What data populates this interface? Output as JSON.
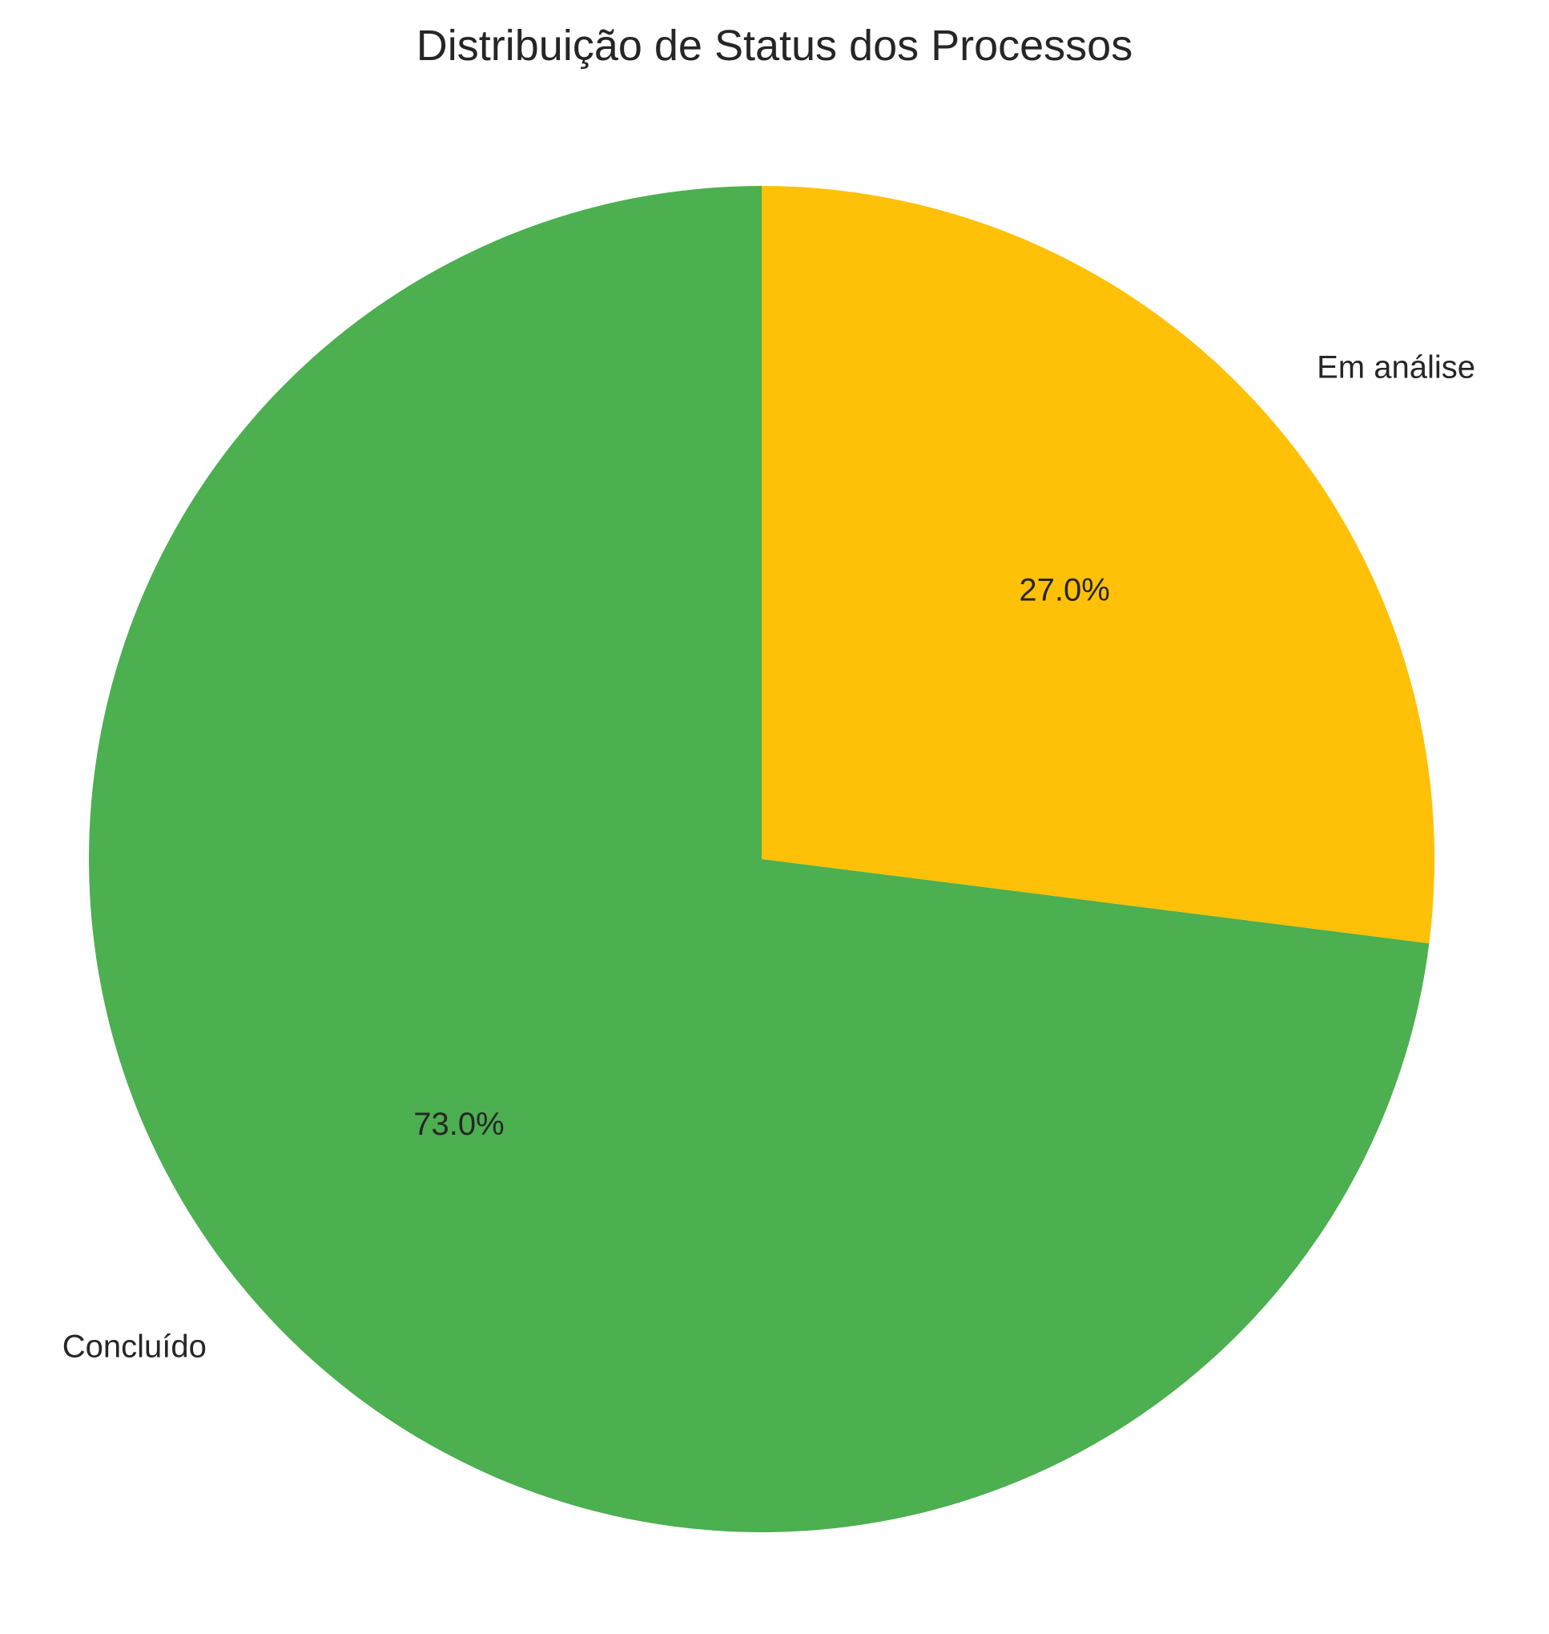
{
  "chart_data": {
    "type": "pie",
    "title": "Distribuição de Status dos Processos",
    "slices": [
      {
        "label": "Em análise",
        "value": 27.0,
        "pct_label": "27.0%",
        "color": "#FFC107"
      },
      {
        "label": "Concluído",
        "value": 73.0,
        "pct_label": "73.0%",
        "color": "#4CAF50"
      }
    ],
    "start_angle_deg": 90,
    "direction": "clockwise",
    "legend": "none"
  }
}
